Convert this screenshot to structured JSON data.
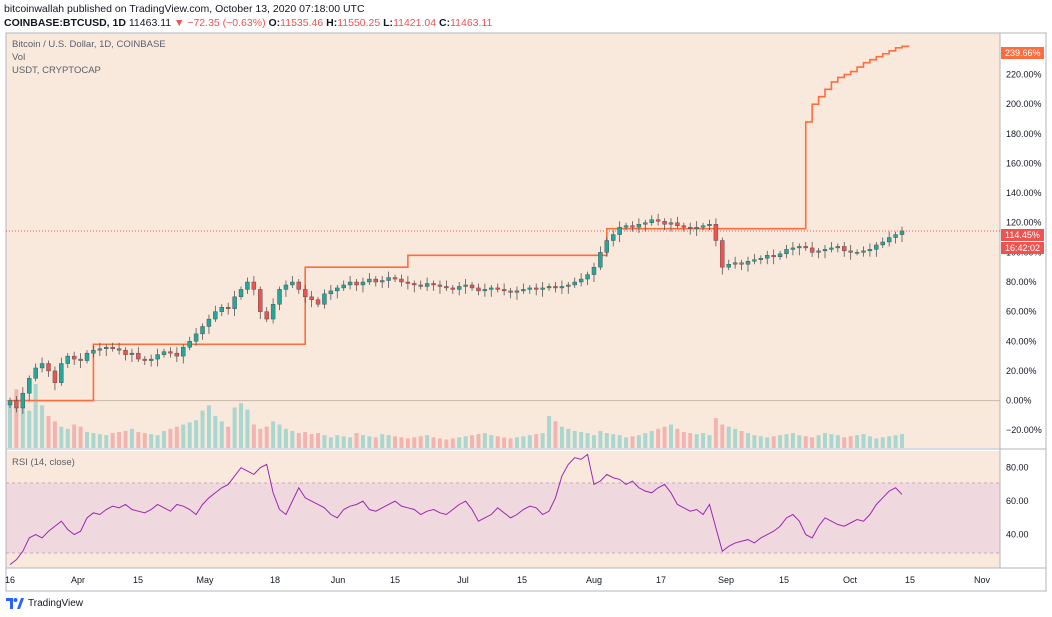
{
  "header": {
    "publish_line": "bitcoinwallah published on TradingView.com, October 13, 2020 07:18:00 UTC",
    "symbol": "COINBASE:BTCUSD, 1D",
    "last": "11463.11",
    "change": "▼ −72.35 (−0.63%)",
    "o_label": "O:",
    "o_value": "11535.46",
    "h_label": "H:",
    "h_value": "11550.25",
    "l_label": "L:",
    "l_value": "11421.04",
    "c_label": "C:",
    "c_value": "11463.11"
  },
  "legend": {
    "line1": "Bitcoin / U.S. Dollar, 1D, COINBASE",
    "line2": "Vol",
    "line3": "USDT, CRYPTOCAP"
  },
  "badges": {
    "usdt_value": "239.66%",
    "btc_value": "114.45%",
    "countdown": "16:42:02"
  },
  "rsi_label": "RSI (14, close)",
  "footer": {
    "brand": "TradingView",
    "logo_icon": "tradingview-logo-icon"
  },
  "colors": {
    "up": "#26a69a",
    "down": "#ef5350",
    "usdt_line": "#ff6d3f",
    "rsi_line": "#9c27b0",
    "rsi_band": "#e1bee7",
    "bg_panel": "#f9e9dc"
  },
  "chart_data": [
    {
      "type": "candlestick",
      "title": "Bitcoin / U.S. Dollar, 1D, COINBASE",
      "y_unit": "% change",
      "ylim": [
        -32,
        248
      ],
      "y_ticks": [
        "220.00%",
        "200.00%",
        "180.00%",
        "160.00%",
        "140.00%",
        "120.00%",
        "100.00%",
        "80.00%",
        "60.00%",
        "40.00%",
        "20.00%",
        "0.00%",
        "−20.00%"
      ],
      "x_ticks": [
        "16",
        "Apr",
        "15",
        "May",
        "18",
        "Jun",
        "15",
        "Jul",
        "15",
        "Aug",
        "17",
        "Sep",
        "15",
        "Oct",
        "15",
        "Nov"
      ],
      "btc_close_pct": [
        0,
        -5,
        5,
        15,
        22,
        25,
        20,
        12,
        25,
        30,
        28,
        27,
        32,
        34,
        35,
        36,
        35,
        34,
        31,
        32,
        28,
        27,
        28,
        31,
        33,
        32,
        30,
        36,
        40,
        45,
        50,
        55,
        60,
        63,
        62,
        70,
        75,
        80,
        75,
        60,
        55,
        65,
        75,
        78,
        80,
        75,
        70,
        68,
        65,
        72,
        74,
        76,
        78,
        80,
        78,
        80,
        82,
        80,
        81,
        83,
        82,
        80,
        79,
        78,
        77,
        79,
        78,
        77,
        76,
        75,
        77,
        78,
        76,
        74,
        75,
        76,
        75,
        74,
        73,
        74,
        75,
        76,
        75,
        76,
        77,
        76,
        77,
        78,
        80,
        82,
        85,
        90,
        100,
        108,
        112,
        117,
        118,
        117,
        119,
        120,
        122,
        121,
        119,
        120,
        118,
        117,
        116,
        117,
        118,
        119,
        108,
        90,
        92,
        93,
        92,
        94,
        95,
        96,
        98,
        97,
        99,
        102,
        103,
        104,
        103,
        100,
        101,
        102,
        103,
        104,
        101,
        100,
        100,
        101,
        102,
        105,
        107,
        110,
        112,
        114.45
      ],
      "usdt_pct": [
        0,
        0,
        0,
        0,
        0,
        0,
        0,
        0,
        0,
        0,
        0,
        0,
        0,
        38,
        38,
        38,
        38,
        38,
        38,
        38,
        38,
        38,
        38,
        38,
        38,
        38,
        38,
        38,
        38,
        38,
        38,
        38,
        38,
        38,
        38,
        38,
        38,
        38,
        38,
        38,
        38,
        38,
        38,
        38,
        38,
        38,
        90,
        90,
        90,
        90,
        90,
        90,
        90,
        90,
        90,
        90,
        90,
        90,
        90,
        90,
        90,
        90,
        98,
        98,
        98,
        98,
        98,
        98,
        98,
        98,
        98,
        98,
        98,
        98,
        98,
        98,
        98,
        98,
        98,
        98,
        98,
        98,
        98,
        98,
        98,
        98,
        98,
        98,
        98,
        98,
        98,
        98,
        98,
        116,
        116,
        116,
        116,
        116,
        116,
        116,
        116,
        116,
        116,
        116,
        116,
        116,
        116,
        116,
        116,
        116,
        116,
        116,
        116,
        116,
        116,
        116,
        116,
        116,
        116,
        116,
        116,
        116,
        116,
        116,
        188,
        200,
        205,
        210,
        215,
        218,
        220,
        222,
        225,
        228,
        230,
        232,
        234,
        236,
        238,
        239,
        239.66
      ],
      "badges": [
        "239.66%",
        "114.45%"
      ]
    },
    {
      "type": "bar",
      "title": "Vol",
      "values": [
        40,
        55,
        45,
        35,
        60,
        40,
        30,
        25,
        20,
        18,
        22,
        20,
        15,
        14,
        13,
        12,
        14,
        15,
        16,
        18,
        15,
        14,
        13,
        12,
        16,
        18,
        20,
        22,
        24,
        26,
        35,
        40,
        30,
        25,
        20,
        38,
        42,
        36,
        22,
        18,
        20,
        25,
        22,
        18,
        16,
        14,
        15,
        13,
        14,
        12,
        10,
        12,
        11,
        10,
        14,
        12,
        11,
        10,
        13,
        12,
        11,
        10,
        9,
        10,
        11,
        12,
        10,
        9,
        8,
        9,
        10,
        11,
        12,
        13,
        14,
        12,
        11,
        10,
        9,
        10,
        11,
        12,
        13,
        14,
        30,
        25,
        20,
        18,
        16,
        15,
        14,
        12,
        16,
        14,
        13,
        12,
        10,
        11,
        12,
        14,
        16,
        18,
        20,
        22,
        18,
        15,
        14,
        13,
        14,
        12,
        28,
        22,
        20,
        18,
        16,
        14,
        12,
        11,
        10,
        11,
        12,
        13,
        14,
        12,
        11,
        10,
        12,
        14,
        13,
        12,
        10,
        11,
        12,
        13,
        11,
        9,
        10,
        11,
        12,
        13,
        10
      ]
    },
    {
      "type": "line",
      "title": "RSI (14, close)",
      "ylim": [
        20,
        90
      ],
      "y_ticks": [
        "80.00",
        "60.00",
        "40.00"
      ],
      "band": [
        30,
        70
      ],
      "values": [
        22,
        25,
        30,
        38,
        40,
        38,
        42,
        45,
        48,
        43,
        40,
        42,
        50,
        53,
        52,
        55,
        57,
        56,
        58,
        55,
        54,
        53,
        55,
        58,
        56,
        54,
        58,
        57,
        55,
        52,
        58,
        62,
        65,
        68,
        70,
        75,
        80,
        78,
        76,
        80,
        82,
        65,
        55,
        52,
        60,
        68,
        62,
        60,
        58,
        56,
        52,
        50,
        55,
        57,
        58,
        60,
        55,
        54,
        56,
        58,
        60,
        57,
        56,
        55,
        52,
        54,
        55,
        53,
        52,
        55,
        58,
        60,
        55,
        48,
        50,
        52,
        56,
        53,
        50,
        52,
        55,
        57,
        56,
        52,
        54,
        62,
        75,
        82,
        86,
        85,
        88,
        70,
        72,
        76,
        74,
        73,
        70,
        72,
        68,
        66,
        65,
        68,
        70,
        65,
        58,
        56,
        54,
        55,
        52,
        58,
        44,
        30,
        33,
        35,
        36,
        37,
        35,
        38,
        40,
        42,
        45,
        50,
        52,
        48,
        40,
        38,
        45,
        50,
        48,
        46,
        45,
        47,
        49,
        48,
        52,
        58,
        62,
        66,
        68,
        64
      ]
    }
  ]
}
